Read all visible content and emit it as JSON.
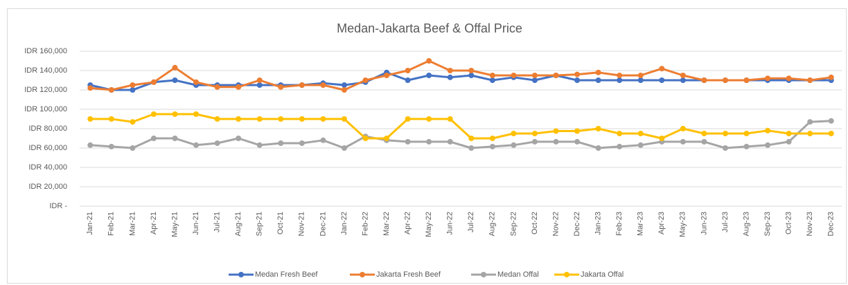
{
  "chart_data": {
    "type": "line",
    "title": "Medan-Jakarta Beef & Offal Price",
    "categories": [
      "Jan-21",
      "Feb-21",
      "Mar-21",
      "Apr-21",
      "May-21",
      "Jun-21",
      "Jul-21",
      "Aug-21",
      "Sep-21",
      "Oct-21",
      "Nov-21",
      "Dec-21",
      "Jan-22",
      "Feb-22",
      "Mar-22",
      "Apr-22",
      "May-22",
      "Jun-22",
      "Jul-22",
      "Aug-22",
      "Sep-22",
      "Oct-22",
      "Nov-22",
      "Dec-22",
      "Jan-23",
      "Feb-23",
      "Mar-23",
      "Apr-23",
      "May-23",
      "Jun-23",
      "Jul-23",
      "Aug-23",
      "Sep-23",
      "Oct-23",
      "Nov-23",
      "Dec-23"
    ],
    "series": [
      {
        "name": "Medan Fresh Beef",
        "color": "#4472c4",
        "values": [
          125000,
          120000,
          120000,
          128000,
          130000,
          125000,
          125000,
          125000,
          125000,
          125000,
          125000,
          127000,
          125000,
          128000,
          138000,
          130000,
          135000,
          133000,
          135000,
          130000,
          133000,
          130000,
          135000,
          130000,
          130000,
          130000,
          130000,
          130000,
          130000,
          130000,
          130000,
          130000,
          130000,
          130000,
          130000,
          130000
        ]
      },
      {
        "name": "Jakarta Fresh Beef",
        "color": "#ed7d31",
        "values": [
          122000,
          120000,
          125000,
          128000,
          143000,
          128000,
          123000,
          123000,
          130000,
          123000,
          125000,
          125000,
          120000,
          130000,
          135000,
          140000,
          150000,
          140000,
          140000,
          135000,
          135000,
          135000,
          135000,
          136000,
          138000,
          135000,
          135000,
          142000,
          135000,
          130000,
          130000,
          130000,
          132000,
          132000,
          130000,
          133000
        ]
      },
      {
        "name": "Medan Offal",
        "color": "#a5a5a5",
        "values": [
          63000,
          61500,
          60000,
          70000,
          70000,
          63000,
          65000,
          70000,
          63000,
          65000,
          65000,
          68000,
          60000,
          72000,
          68000,
          66500,
          66500,
          66500,
          60000,
          61500,
          63000,
          66500,
          66500,
          66500,
          60000,
          61500,
          63000,
          66500,
          66500,
          66500,
          60000,
          61500,
          63000,
          66500,
          87000,
          88000
        ]
      },
      {
        "name": "Jakarta Offal",
        "color": "#ffc000",
        "values": [
          90000,
          90000,
          87000,
          95000,
          95000,
          95000,
          90000,
          90000,
          90000,
          90000,
          90000,
          90000,
          90000,
          70000,
          70000,
          90000,
          90000,
          90000,
          70000,
          70000,
          75000,
          75000,
          77500,
          77500,
          80000,
          75000,
          75000,
          70000,
          80000,
          75000,
          75000,
          75000,
          78000,
          75000,
          75000,
          75000
        ]
      }
    ],
    "ylim": [
      0,
      160000
    ],
    "yticks": [
      {
        "value": 0,
        "label": "IDR -"
      },
      {
        "value": 20000,
        "label": "IDR 20,000"
      },
      {
        "value": 40000,
        "label": "IDR 40,000"
      },
      {
        "value": 60000,
        "label": "IDR 60,000"
      },
      {
        "value": 80000,
        "label": "IDR 80,000"
      },
      {
        "value": 100000,
        "label": "IDR 100,000"
      },
      {
        "value": 120000,
        "label": "IDR 120,000"
      },
      {
        "value": 140000,
        "label": "IDR 140,000"
      },
      {
        "value": 160000,
        "label": "IDR 160,000"
      }
    ],
    "grid": true,
    "legend": "bottom"
  }
}
